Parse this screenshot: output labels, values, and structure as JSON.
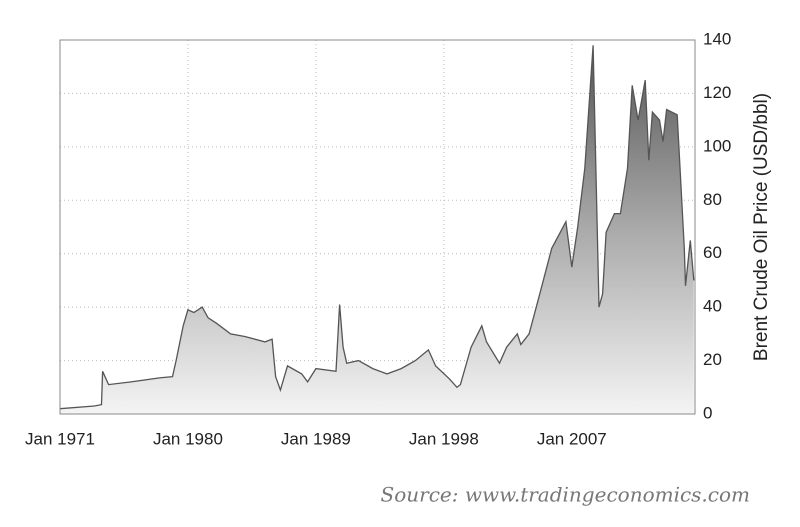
{
  "chart_data": {
    "type": "area",
    "y_label": "Brent Crude Oil Price (USD/bbl)",
    "source": "Source: www.tradingeconomics.com",
    "x": [
      "1971-01",
      "1973-06",
      "1973-12",
      "1974-01",
      "1974-06",
      "1976-01",
      "1978-01",
      "1978-12",
      "1979-03",
      "1979-09",
      "1980-01",
      "1980-06",
      "1981-01",
      "1981-06",
      "1982-01",
      "1983-01",
      "1984-01",
      "1985-06",
      "1985-12",
      "1986-03",
      "1986-07",
      "1987-01",
      "1988-01",
      "1988-06",
      "1989-01",
      "1990-06",
      "1990-09",
      "1990-12",
      "1991-03",
      "1992-01",
      "1993-01",
      "1994-01",
      "1995-01",
      "1996-01",
      "1996-12",
      "1997-06",
      "1998-06",
      "1998-12",
      "1999-03",
      "1999-12",
      "2000-09",
      "2001-01",
      "2001-12",
      "2002-06",
      "2003-03",
      "2003-06",
      "2004-01",
      "2004-10",
      "2005-08",
      "2006-08",
      "2007-01",
      "2007-06",
      "2007-12",
      "2008-07",
      "2008-12",
      "2009-03",
      "2009-06",
      "2010-01",
      "2010-06",
      "2010-12",
      "2011-04",
      "2011-09",
      "2012-03",
      "2012-06",
      "2012-09",
      "2013-03",
      "2013-06",
      "2013-09",
      "2014-06",
      "2014-12",
      "2015-01",
      "2015-05",
      "2015-08"
    ],
    "series": [
      {
        "name": "Brent",
        "color": "#555555",
        "values": [
          2,
          3,
          3.5,
          16,
          11,
          12,
          13.5,
          14,
          20,
          33,
          39,
          38,
          40,
          36,
          34,
          30,
          29,
          27,
          28,
          14,
          9,
          18,
          15,
          12,
          17,
          16,
          41,
          25,
          19,
          20,
          17,
          15,
          17,
          20,
          24,
          18,
          13,
          10,
          11,
          25,
          33,
          27,
          19,
          25,
          30,
          26,
          30,
          45,
          62,
          72,
          55,
          70,
          92,
          138,
          40,
          45,
          68,
          75,
          75,
          92,
          123,
          110,
          125,
          95,
          113,
          110,
          102,
          114,
          112,
          62,
          48,
          65,
          50
        ]
      }
    ],
    "xlim": [
      "1971-01",
      "2015-09"
    ],
    "xticks": [
      {
        "value": "1971-01",
        "label": "Jan 1971"
      },
      {
        "value": "1980-01",
        "label": "Jan 1980"
      },
      {
        "value": "1989-01",
        "label": "Jan 1989"
      },
      {
        "value": "1998-01",
        "label": "Jan 1998"
      },
      {
        "value": "2007-01",
        "label": "Jan 2007"
      }
    ],
    "ylim": [
      0,
      140
    ],
    "yticks": [
      0,
      20,
      40,
      60,
      80,
      100,
      120,
      140
    ],
    "grid": true
  }
}
